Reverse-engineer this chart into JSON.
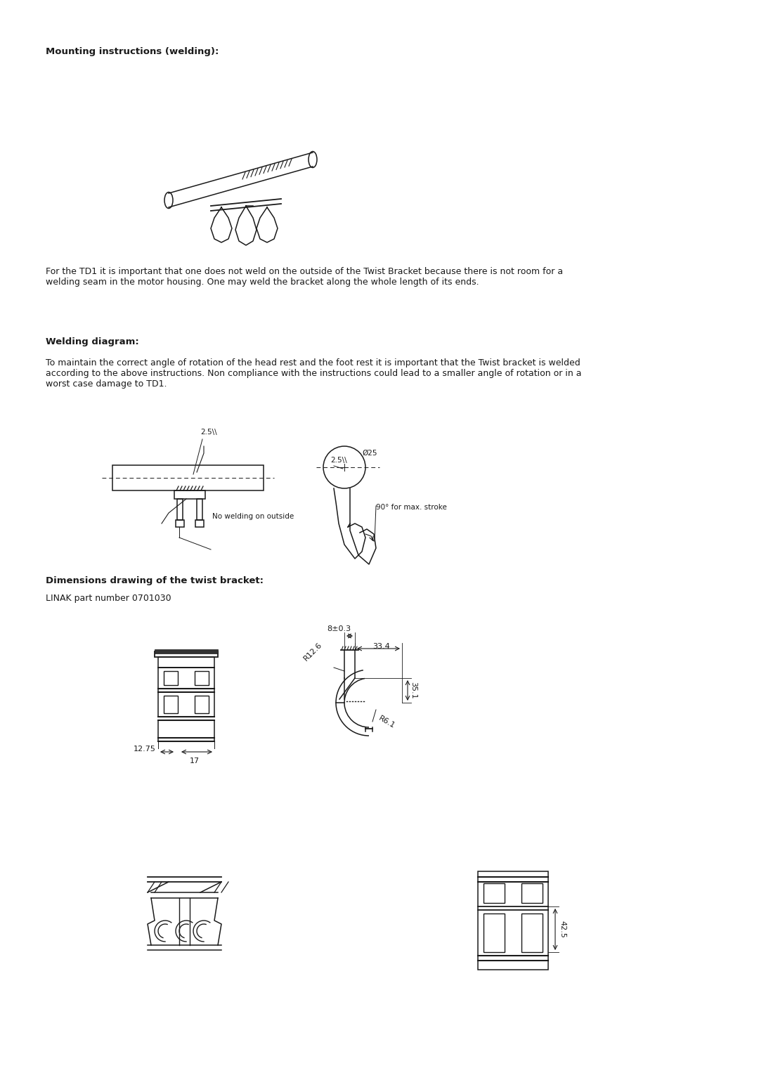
{
  "bg_color": "#ffffff",
  "text_color": "#1a1a1a",
  "line_color": "#1a1a1a",
  "title1": "Mounting instructions (welding):",
  "para1": "For the TD1 it is important that one does not weld on the outside of the Twist Bracket because there is not room for a\nwelding seam in the motor housing. One may weld the bracket along the whole length of its ends.",
  "title2": "Welding diagram:",
  "para2": "To maintain the correct angle of rotation of the head rest and the foot rest it is important that the Twist bracket is welded\naccording to the above instructions. Non compliance with the instructions could lead to a smaller angle of rotation or in a\nworst case damage to TD1.",
  "label_no_welding": "No welding on outside",
  "label_90deg": "90° for max. stroke",
  "label_phi25": "Ø25",
  "label_2_5_1": "2.5\\\\",
  "label_2_5_2": "2.5\\\\",
  "title3": "Dimensions drawing of the twist bracket:",
  "subtitle3": "LINAK part number 0701030",
  "dim_8pm03": "8±0.3",
  "dim_334": "33.4",
  "dim_R126": "R12.6",
  "dim_R61": "R6.1",
  "dim_351": "35.1",
  "dim_1275": "12.75",
  "dim_17": "17"
}
